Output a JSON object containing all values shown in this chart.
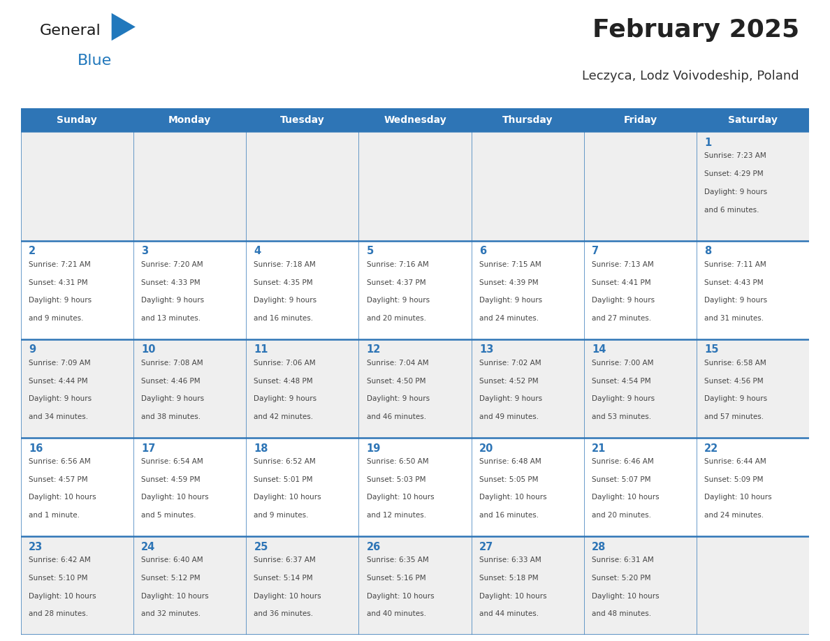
{
  "title": "February 2025",
  "subtitle": "Leczyca, Lodz Voivodeship, Poland",
  "header_bg": "#2E75B6",
  "header_text": "#FFFFFF",
  "cell_bg_even": "#EFEFEF",
  "cell_bg_odd": "#FFFFFF",
  "border_color": "#2E75B6",
  "day_names": [
    "Sunday",
    "Monday",
    "Tuesday",
    "Wednesday",
    "Thursday",
    "Friday",
    "Saturday"
  ],
  "title_color": "#222222",
  "subtitle_color": "#333333",
  "number_color": "#2E75B6",
  "text_color": "#444444",
  "logo_general_color": "#1A1A1A",
  "logo_blue_color": "#2178BC",
  "days": [
    {
      "day": 1,
      "col": 6,
      "row": 0,
      "sunrise": "7:23 AM",
      "sunset": "4:29 PM",
      "daylight_line1": "Daylight: 9 hours",
      "daylight_line2": "and 6 minutes."
    },
    {
      "day": 2,
      "col": 0,
      "row": 1,
      "sunrise": "7:21 AM",
      "sunset": "4:31 PM",
      "daylight_line1": "Daylight: 9 hours",
      "daylight_line2": "and 9 minutes."
    },
    {
      "day": 3,
      "col": 1,
      "row": 1,
      "sunrise": "7:20 AM",
      "sunset": "4:33 PM",
      "daylight_line1": "Daylight: 9 hours",
      "daylight_line2": "and 13 minutes."
    },
    {
      "day": 4,
      "col": 2,
      "row": 1,
      "sunrise": "7:18 AM",
      "sunset": "4:35 PM",
      "daylight_line1": "Daylight: 9 hours",
      "daylight_line2": "and 16 minutes."
    },
    {
      "day": 5,
      "col": 3,
      "row": 1,
      "sunrise": "7:16 AM",
      "sunset": "4:37 PM",
      "daylight_line1": "Daylight: 9 hours",
      "daylight_line2": "and 20 minutes."
    },
    {
      "day": 6,
      "col": 4,
      "row": 1,
      "sunrise": "7:15 AM",
      "sunset": "4:39 PM",
      "daylight_line1": "Daylight: 9 hours",
      "daylight_line2": "and 24 minutes."
    },
    {
      "day": 7,
      "col": 5,
      "row": 1,
      "sunrise": "7:13 AM",
      "sunset": "4:41 PM",
      "daylight_line1": "Daylight: 9 hours",
      "daylight_line2": "and 27 minutes."
    },
    {
      "day": 8,
      "col": 6,
      "row": 1,
      "sunrise": "7:11 AM",
      "sunset": "4:43 PM",
      "daylight_line1": "Daylight: 9 hours",
      "daylight_line2": "and 31 minutes."
    },
    {
      "day": 9,
      "col": 0,
      "row": 2,
      "sunrise": "7:09 AM",
      "sunset": "4:44 PM",
      "daylight_line1": "Daylight: 9 hours",
      "daylight_line2": "and 34 minutes."
    },
    {
      "day": 10,
      "col": 1,
      "row": 2,
      "sunrise": "7:08 AM",
      "sunset": "4:46 PM",
      "daylight_line1": "Daylight: 9 hours",
      "daylight_line2": "and 38 minutes."
    },
    {
      "day": 11,
      "col": 2,
      "row": 2,
      "sunrise": "7:06 AM",
      "sunset": "4:48 PM",
      "daylight_line1": "Daylight: 9 hours",
      "daylight_line2": "and 42 minutes."
    },
    {
      "day": 12,
      "col": 3,
      "row": 2,
      "sunrise": "7:04 AM",
      "sunset": "4:50 PM",
      "daylight_line1": "Daylight: 9 hours",
      "daylight_line2": "and 46 minutes."
    },
    {
      "day": 13,
      "col": 4,
      "row": 2,
      "sunrise": "7:02 AM",
      "sunset": "4:52 PM",
      "daylight_line1": "Daylight: 9 hours",
      "daylight_line2": "and 49 minutes."
    },
    {
      "day": 14,
      "col": 5,
      "row": 2,
      "sunrise": "7:00 AM",
      "sunset": "4:54 PM",
      "daylight_line1": "Daylight: 9 hours",
      "daylight_line2": "and 53 minutes."
    },
    {
      "day": 15,
      "col": 6,
      "row": 2,
      "sunrise": "6:58 AM",
      "sunset": "4:56 PM",
      "daylight_line1": "Daylight: 9 hours",
      "daylight_line2": "and 57 minutes."
    },
    {
      "day": 16,
      "col": 0,
      "row": 3,
      "sunrise": "6:56 AM",
      "sunset": "4:57 PM",
      "daylight_line1": "Daylight: 10 hours",
      "daylight_line2": "and 1 minute."
    },
    {
      "day": 17,
      "col": 1,
      "row": 3,
      "sunrise": "6:54 AM",
      "sunset": "4:59 PM",
      "daylight_line1": "Daylight: 10 hours",
      "daylight_line2": "and 5 minutes."
    },
    {
      "day": 18,
      "col": 2,
      "row": 3,
      "sunrise": "6:52 AM",
      "sunset": "5:01 PM",
      "daylight_line1": "Daylight: 10 hours",
      "daylight_line2": "and 9 minutes."
    },
    {
      "day": 19,
      "col": 3,
      "row": 3,
      "sunrise": "6:50 AM",
      "sunset": "5:03 PM",
      "daylight_line1": "Daylight: 10 hours",
      "daylight_line2": "and 12 minutes."
    },
    {
      "day": 20,
      "col": 4,
      "row": 3,
      "sunrise": "6:48 AM",
      "sunset": "5:05 PM",
      "daylight_line1": "Daylight: 10 hours",
      "daylight_line2": "and 16 minutes."
    },
    {
      "day": 21,
      "col": 5,
      "row": 3,
      "sunrise": "6:46 AM",
      "sunset": "5:07 PM",
      "daylight_line1": "Daylight: 10 hours",
      "daylight_line2": "and 20 minutes."
    },
    {
      "day": 22,
      "col": 6,
      "row": 3,
      "sunrise": "6:44 AM",
      "sunset": "5:09 PM",
      "daylight_line1": "Daylight: 10 hours",
      "daylight_line2": "and 24 minutes."
    },
    {
      "day": 23,
      "col": 0,
      "row": 4,
      "sunrise": "6:42 AM",
      "sunset": "5:10 PM",
      "daylight_line1": "Daylight: 10 hours",
      "daylight_line2": "and 28 minutes."
    },
    {
      "day": 24,
      "col": 1,
      "row": 4,
      "sunrise": "6:40 AM",
      "sunset": "5:12 PM",
      "daylight_line1": "Daylight: 10 hours",
      "daylight_line2": "and 32 minutes."
    },
    {
      "day": 25,
      "col": 2,
      "row": 4,
      "sunrise": "6:37 AM",
      "sunset": "5:14 PM",
      "daylight_line1": "Daylight: 10 hours",
      "daylight_line2": "and 36 minutes."
    },
    {
      "day": 26,
      "col": 3,
      "row": 4,
      "sunrise": "6:35 AM",
      "sunset": "5:16 PM",
      "daylight_line1": "Daylight: 10 hours",
      "daylight_line2": "and 40 minutes."
    },
    {
      "day": 27,
      "col": 4,
      "row": 4,
      "sunrise": "6:33 AM",
      "sunset": "5:18 PM",
      "daylight_line1": "Daylight: 10 hours",
      "daylight_line2": "and 44 minutes."
    },
    {
      "day": 28,
      "col": 5,
      "row": 4,
      "sunrise": "6:31 AM",
      "sunset": "5:20 PM",
      "daylight_line1": "Daylight: 10 hours",
      "daylight_line2": "and 48 minutes."
    }
  ]
}
